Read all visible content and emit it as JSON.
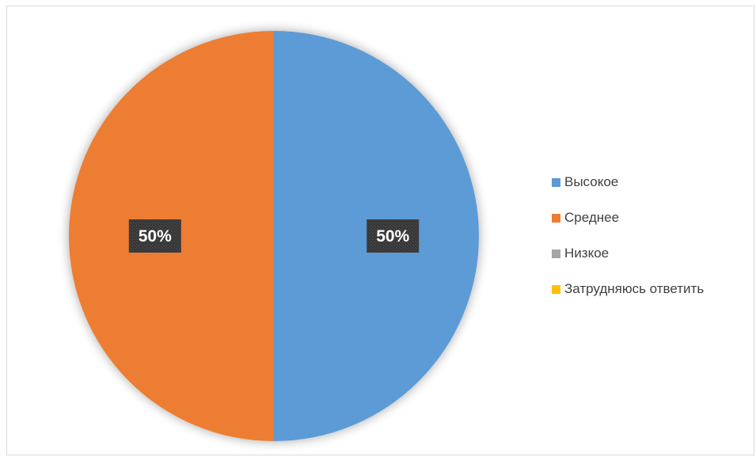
{
  "chart_data": {
    "type": "pie",
    "title": "",
    "categories": [
      "Высокое",
      "Среднее",
      "Низкое",
      "Затрудняюсь ответить"
    ],
    "values": [
      50,
      50,
      0,
      0
    ],
    "data_labels": [
      "50%",
      "50%",
      "",
      ""
    ],
    "colors": [
      "#5b9bd5",
      "#ed7d31",
      "#a5a5a5",
      "#ffc000"
    ],
    "legend_position": "right",
    "start_angle": "12 o'clock, clockwise",
    "data_label_style": "dark patterned box, white bold text"
  }
}
